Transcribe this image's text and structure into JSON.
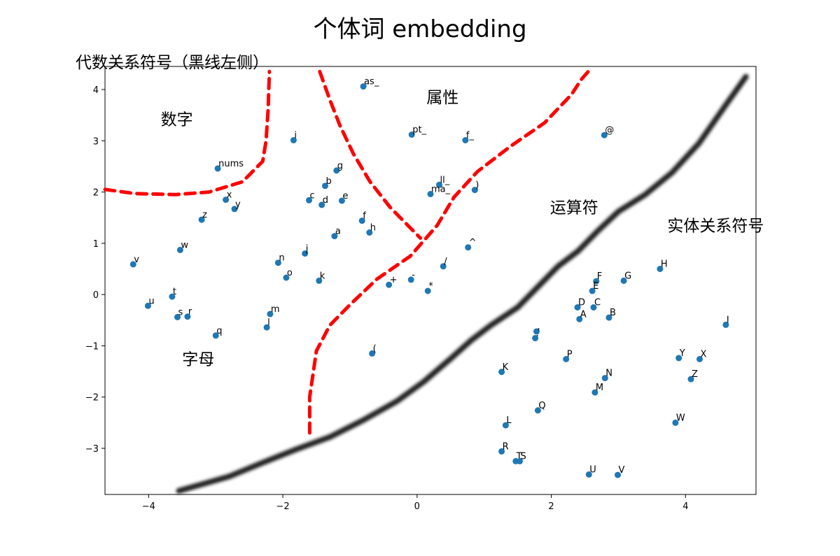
{
  "chart_data": {
    "type": "scatter",
    "title": "个体词 embedding",
    "corner_label": "代数关系符号（黑线左侧）",
    "xlim": [
      -4.65,
      5.05
    ],
    "ylim": [
      -3.9,
      4.45
    ],
    "xticks": [
      -4,
      -2,
      0,
      2,
      4
    ],
    "yticks": [
      -3,
      -2,
      -1,
      0,
      1,
      2,
      3,
      4
    ],
    "grid": false,
    "point_color": "#1f77b4",
    "red_line_color": "#ff0000",
    "black_line_color": "#222222",
    "points": [
      {
        "label": "as_",
        "x": -0.8,
        "y": 4.06
      },
      {
        "label": "i",
        "x": -1.84,
        "y": 3.01
      },
      {
        "label": "pt_",
        "x": -0.08,
        "y": 3.12
      },
      {
        "label": "f_",
        "x": 0.72,
        "y": 3.01
      },
      {
        "label": "@",
        "x": 2.79,
        "y": 3.11
      },
      {
        "label": "nums",
        "x": -2.97,
        "y": 2.46
      },
      {
        "label": "g",
        "x": -1.2,
        "y": 2.42
      },
      {
        "label": "b",
        "x": -1.37,
        "y": 2.12
      },
      {
        "label": "ll_",
        "x": 0.33,
        "y": 2.14
      },
      {
        "label": "ma_",
        "x": 0.2,
        "y": 1.96
      },
      {
        "label": ")",
        "x": 0.86,
        "y": 2.04
      },
      {
        "label": "x",
        "x": -2.85,
        "y": 1.85
      },
      {
        "label": "y",
        "x": -2.72,
        "y": 1.67
      },
      {
        "label": "c",
        "x": -1.61,
        "y": 1.84
      },
      {
        "label": "d",
        "x": -1.42,
        "y": 1.75
      },
      {
        "label": "e",
        "x": -1.12,
        "y": 1.83
      },
      {
        "label": "z",
        "x": -3.21,
        "y": 1.46
      },
      {
        "label": "f",
        "x": -0.82,
        "y": 1.44
      },
      {
        "label": "h",
        "x": -0.71,
        "y": 1.21
      },
      {
        "label": "a",
        "x": -1.23,
        "y": 1.14
      },
      {
        "label": "w",
        "x": -3.53,
        "y": 0.87
      },
      {
        "label": "j",
        "x": -1.67,
        "y": 0.8
      },
      {
        "label": "^",
        "x": 0.76,
        "y": 0.92
      },
      {
        "label": "v",
        "x": -4.23,
        "y": 0.59
      },
      {
        "label": "n",
        "x": -2.07,
        "y": 0.62
      },
      {
        "label": "/",
        "x": 0.39,
        "y": 0.55
      },
      {
        "label": "o",
        "x": -1.95,
        "y": 0.33
      },
      {
        "label": "k",
        "x": -1.46,
        "y": 0.27
      },
      {
        "label": "-",
        "x": -0.09,
        "y": 0.29
      },
      {
        "label": "+",
        "x": -0.42,
        "y": 0.19
      },
      {
        "label": "*",
        "x": 0.16,
        "y": 0.07
      },
      {
        "label": "t",
        "x": -3.65,
        "y": -0.04
      },
      {
        "label": "u",
        "x": -4.01,
        "y": -0.22
      },
      {
        "label": "s",
        "x": -3.57,
        "y": -0.44
      },
      {
        "label": "r",
        "x": -3.42,
        "y": -0.43
      },
      {
        "label": "m",
        "x": -2.19,
        "y": -0.38
      },
      {
        "label": "l",
        "x": -2.24,
        "y": -0.64
      },
      {
        "label": "q",
        "x": -3.0,
        "y": -0.8
      },
      {
        "label": "(",
        "x": -0.67,
        "y": -1.15
      },
      {
        "label": "F",
        "x": 2.67,
        "y": 0.26
      },
      {
        "label": "G",
        "x": 3.08,
        "y": 0.27
      },
      {
        "label": "H",
        "x": 3.62,
        "y": 0.5
      },
      {
        "label": "E",
        "x": 2.61,
        "y": 0.07
      },
      {
        "label": "D",
        "x": 2.39,
        "y": -0.25
      },
      {
        "label": "C",
        "x": 2.63,
        "y": -0.25
      },
      {
        "label": "A",
        "x": 2.42,
        "y": -0.48
      },
      {
        "label": "B",
        "x": 2.86,
        "y": -0.45
      },
      {
        "label": "I",
        "x": 4.6,
        "y": -0.59
      },
      {
        "label": ",",
        "x": 1.78,
        "y": -0.72
      },
      {
        "label": ".",
        "x": 1.76,
        "y": -0.85
      },
      {
        "label": "P",
        "x": 2.22,
        "y": -1.26
      },
      {
        "label": "Y",
        "x": 3.9,
        "y": -1.24
      },
      {
        "label": "X",
        "x": 4.21,
        "y": -1.26
      },
      {
        "label": "K",
        "x": 1.26,
        "y": -1.51
      },
      {
        "label": "N",
        "x": 2.8,
        "y": -1.63
      },
      {
        "label": "Z",
        "x": 4.08,
        "y": -1.65
      },
      {
        "label": "M",
        "x": 2.65,
        "y": -1.91
      },
      {
        "label": "Q",
        "x": 1.8,
        "y": -2.26
      },
      {
        "label": "W",
        "x": 3.85,
        "y": -2.5
      },
      {
        "label": "L",
        "x": 1.32,
        "y": -2.55
      },
      {
        "label": "R",
        "x": 1.26,
        "y": -3.06
      },
      {
        "label": "T",
        "x": 1.47,
        "y": -3.25
      },
      {
        "label": "S",
        "x": 1.53,
        "y": -3.25
      },
      {
        "label": "U",
        "x": 2.56,
        "y": -3.51
      },
      {
        "label": "V",
        "x": 2.99,
        "y": -3.52
      }
    ],
    "region_labels": [
      {
        "text": "数字",
        "x": -3.82,
        "y": 3.31
      },
      {
        "text": "属性",
        "x": 0.14,
        "y": 3.74
      },
      {
        "text": "运算符",
        "x": 1.98,
        "y": 1.59
      },
      {
        "text": "实体关系符号",
        "x": 3.73,
        "y": 1.24
      },
      {
        "text": "字母",
        "x": -3.5,
        "y": -1.37
      }
    ],
    "red_lines": [
      [
        [
          -4.65,
          2.05
        ],
        [
          -4.2,
          1.97
        ],
        [
          -3.6,
          1.95
        ],
        [
          -3.1,
          2.0
        ],
        [
          -2.6,
          2.2
        ],
        [
          -2.3,
          2.6
        ],
        [
          -2.25,
          3.0
        ],
        [
          -2.22,
          3.6
        ],
        [
          -2.2,
          4.35
        ]
      ],
      [
        [
          -1.45,
          4.35
        ],
        [
          -1.3,
          3.8
        ],
        [
          -1.15,
          3.3
        ],
        [
          -0.95,
          2.75
        ],
        [
          -0.7,
          2.2
        ],
        [
          -0.4,
          1.7
        ],
        [
          -0.1,
          1.3
        ],
        [
          0.05,
          1.1
        ]
      ],
      [
        [
          -1.6,
          -2.7
        ],
        [
          -1.6,
          -2.0
        ],
        [
          -1.5,
          -1.1
        ],
        [
          -1.3,
          -0.6
        ],
        [
          -1.0,
          -0.2
        ],
        [
          -0.6,
          0.3
        ],
        [
          -0.1,
          0.75
        ],
        [
          0.3,
          1.35
        ],
        [
          0.55,
          1.9
        ],
        [
          0.9,
          2.4
        ],
        [
          1.4,
          2.9
        ],
        [
          1.9,
          3.35
        ],
        [
          2.3,
          3.9
        ],
        [
          2.45,
          4.2
        ],
        [
          2.55,
          4.35
        ]
      ]
    ],
    "black_line": [
      [
        -3.55,
        -3.83
      ],
      [
        -3.2,
        -3.7
      ],
      [
        -2.8,
        -3.55
      ],
      [
        -2.3,
        -3.28
      ],
      [
        -1.8,
        -3.02
      ],
      [
        -1.3,
        -2.78
      ],
      [
        -0.8,
        -2.45
      ],
      [
        -0.3,
        -2.08
      ],
      [
        0.1,
        -1.7
      ],
      [
        0.5,
        -1.25
      ],
      [
        0.8,
        -0.9
      ],
      [
        1.1,
        -0.6
      ],
      [
        1.5,
        -0.25
      ],
      [
        1.8,
        0.15
      ],
      [
        2.1,
        0.55
      ],
      [
        2.4,
        0.85
      ],
      [
        2.7,
        1.25
      ],
      [
        3.0,
        1.62
      ],
      [
        3.4,
        1.95
      ],
      [
        3.8,
        2.38
      ],
      [
        4.2,
        2.95
      ],
      [
        4.6,
        3.7
      ],
      [
        4.9,
        4.25
      ]
    ]
  }
}
